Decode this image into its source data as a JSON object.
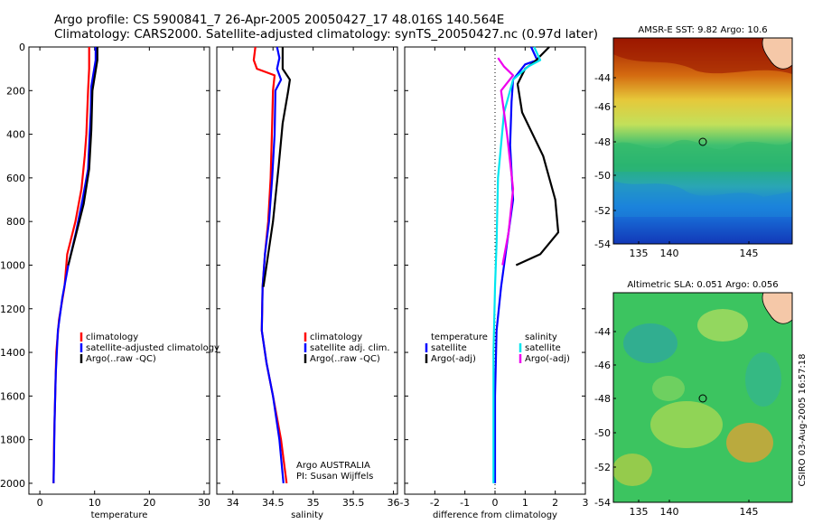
{
  "header": {
    "line1": "Argo profile: CS 5900841_7 26-Apr-2005 20050427_17 48.016S 140.564E",
    "line2": "Climatology: CARS2000. Satellite-adjusted climatology: synTS_20050427.nc (0.97d later)"
  },
  "colors": {
    "clim": "#ff0000",
    "sat": "#0000ff",
    "argo": "#000000",
    "sal_sat": "#00e5ee",
    "sal_argo": "#ee00ee"
  },
  "chart_data": [
    {
      "type": "line",
      "name": "temperature-profile",
      "xlabel": "temperature",
      "ylabel": "",
      "xlim": [
        -2,
        31
      ],
      "ylim": [
        2050,
        0
      ],
      "xticks": [
        0,
        10,
        20,
        30
      ],
      "yticks": [
        0,
        200,
        400,
        600,
        800,
        1000,
        1200,
        1400,
        1600,
        1800,
        2000
      ],
      "legend": [
        "climatology",
        "satellite-adjusted climatology",
        "Argo(..raw -QC)"
      ],
      "series": [
        {
          "name": "climatology",
          "color": "clim",
          "points": [
            [
              9.0,
              0
            ],
            [
              9.0,
              100
            ],
            [
              8.8,
              200
            ],
            [
              8.5,
              400
            ],
            [
              8.2,
              500
            ],
            [
              7.6,
              650
            ],
            [
              6.5,
              800
            ],
            [
              5.0,
              950
            ],
            [
              4.5,
              1100
            ],
            [
              3.5,
              1250
            ],
            [
              3.0,
              1400
            ],
            [
              2.8,
              1600
            ],
            [
              2.6,
              1800
            ],
            [
              2.5,
              2000
            ]
          ]
        },
        {
          "name": "satellite-adjusted climatology",
          "color": "sat",
          "points": [
            [
              10.2,
              0
            ],
            [
              10.2,
              60
            ],
            [
              9.4,
              180
            ],
            [
              9.3,
              300
            ],
            [
              9.0,
              450
            ],
            [
              8.8,
              560
            ],
            [
              7.8,
              700
            ],
            [
              6.6,
              850
            ],
            [
              5.2,
              1000
            ],
            [
              4.1,
              1150
            ],
            [
              3.3,
              1300
            ],
            [
              2.9,
              1500
            ],
            [
              2.7,
              1700
            ],
            [
              2.5,
              2000
            ]
          ]
        },
        {
          "name": "Argo(..raw -QC)",
          "color": "argo",
          "points": [
            [
              10.5,
              0
            ],
            [
              10.5,
              60
            ],
            [
              9.6,
              200
            ],
            [
              9.4,
              380
            ],
            [
              9.0,
              560
            ],
            [
              8.0,
              720
            ],
            [
              6.5,
              870
            ],
            [
              5.2,
              1000
            ]
          ]
        }
      ]
    },
    {
      "type": "line",
      "name": "salinity-profile",
      "xlabel": "salinity",
      "ylabel": "",
      "xlim": [
        33.8,
        36.05
      ],
      "ylim": [
        2050,
        0
      ],
      "xticks": [
        34,
        34.5,
        35,
        35.5,
        36
      ],
      "legend": [
        "climatology",
        "satellite adj. clim.",
        "Argo(..raw -QC)"
      ],
      "annotation": [
        "Argo AUSTRALIA",
        "PI: Susan Wijffels"
      ],
      "series": [
        {
          "name": "climatology",
          "color": "clim",
          "points": [
            [
              34.28,
              0
            ],
            [
              34.26,
              60
            ],
            [
              34.3,
              100
            ],
            [
              34.52,
              130
            ],
            [
              34.5,
              200
            ],
            [
              34.49,
              350
            ],
            [
              34.47,
              600
            ],
            [
              34.44,
              800
            ],
            [
              34.4,
              950
            ],
            [
              34.37,
              1100
            ],
            [
              34.36,
              1300
            ],
            [
              34.42,
              1450
            ],
            [
              34.5,
              1600
            ],
            [
              34.6,
              1800
            ],
            [
              34.67,
              2000
            ]
          ]
        },
        {
          "name": "satellite adj. clim.",
          "color": "sat",
          "points": [
            [
              34.55,
              0
            ],
            [
              34.58,
              50
            ],
            [
              34.55,
              100
            ],
            [
              34.6,
              150
            ],
            [
              34.53,
              200
            ],
            [
              34.52,
              400
            ],
            [
              34.49,
              600
            ],
            [
              34.45,
              800
            ],
            [
              34.4,
              950
            ],
            [
              34.37,
              1100
            ],
            [
              34.36,
              1300
            ],
            [
              34.42,
              1450
            ],
            [
              34.5,
              1600
            ],
            [
              34.58,
              1800
            ],
            [
              34.63,
              2000
            ]
          ]
        },
        {
          "name": "Argo(..raw -QC)",
          "color": "argo",
          "points": [
            [
              34.62,
              0
            ],
            [
              34.62,
              100
            ],
            [
              34.71,
              150
            ],
            [
              34.69,
              200
            ],
            [
              34.62,
              350
            ],
            [
              34.57,
              550
            ],
            [
              34.5,
              800
            ],
            [
              34.44,
              950
            ],
            [
              34.38,
              1100
            ]
          ]
        }
      ]
    },
    {
      "type": "line",
      "name": "difference-profile",
      "xlabel": "difference from climatology",
      "ylabel": "",
      "xlim": [
        -3,
        3
      ],
      "ylim": [
        2050,
        0
      ],
      "xticks": [
        -3,
        -2,
        -1,
        0,
        1,
        2,
        3
      ],
      "legend_left": [
        "temperature",
        "satellite",
        "Argo(-adj)"
      ],
      "legend_right": [
        "salinity",
        "satellite",
        "Argo(-adj)"
      ],
      "series": [
        {
          "name": "temperature satellite",
          "color": "sat",
          "points": [
            [
              1.2,
              0
            ],
            [
              1.4,
              60
            ],
            [
              1.0,
              80
            ],
            [
              0.6,
              150
            ],
            [
              0.55,
              250
            ],
            [
              0.5,
              450
            ],
            [
              0.6,
              700
            ],
            [
              0.4,
              900
            ],
            [
              0.2,
              1100
            ],
            [
              0.05,
              1300
            ],
            [
              0.0,
              1600
            ],
            [
              0.0,
              2000
            ]
          ]
        },
        {
          "name": "temperature Argo(-adj)",
          "color": "argo",
          "points": [
            [
              1.8,
              0
            ],
            [
              1.3,
              70
            ],
            [
              1.0,
              100
            ],
            [
              0.75,
              170
            ],
            [
              0.9,
              300
            ],
            [
              1.6,
              500
            ],
            [
              2.0,
              700
            ],
            [
              2.1,
              850
            ],
            [
              1.5,
              950
            ],
            [
              0.7,
              1000
            ]
          ]
        },
        {
          "name": "salinity satellite",
          "color": "sal_sat",
          "points": [
            [
              1.3,
              0
            ],
            [
              1.5,
              60
            ],
            [
              1.1,
              90
            ],
            [
              0.6,
              150
            ],
            [
              0.3,
              300
            ],
            [
              0.1,
              600
            ],
            [
              0.05,
              900
            ],
            [
              0.0,
              1100
            ],
            [
              -0.05,
              1400
            ],
            [
              -0.05,
              2000
            ]
          ]
        },
        {
          "name": "salinity Argo(-adj)",
          "color": "sal_argo",
          "points": [
            [
              0.1,
              50
            ],
            [
              0.3,
              90
            ],
            [
              0.6,
              130
            ],
            [
              0.2,
              200
            ],
            [
              0.4,
              400
            ],
            [
              0.6,
              650
            ],
            [
              0.45,
              850
            ],
            [
              0.25,
              1000
            ]
          ]
        }
      ]
    }
  ],
  "maps": [
    {
      "name": "sst-map",
      "title": "AMSR-E SST: 9.82 Argo: 10.6",
      "xticks": [
        "135",
        "140",
        "145"
      ],
      "yticks": [
        "-44",
        "-46",
        "-48",
        "-50",
        "-52",
        "-54"
      ]
    },
    {
      "name": "sla-map",
      "title": "Altimetric SLA: 0.051 Argo: 0.056",
      "xticks": [
        "135",
        "140",
        "145"
      ],
      "yticks": [
        "-44",
        "-46",
        "-48",
        "-50",
        "-52",
        "-54"
      ]
    }
  ],
  "credit": "CSIRO 03-Aug-2005 16:57:18"
}
